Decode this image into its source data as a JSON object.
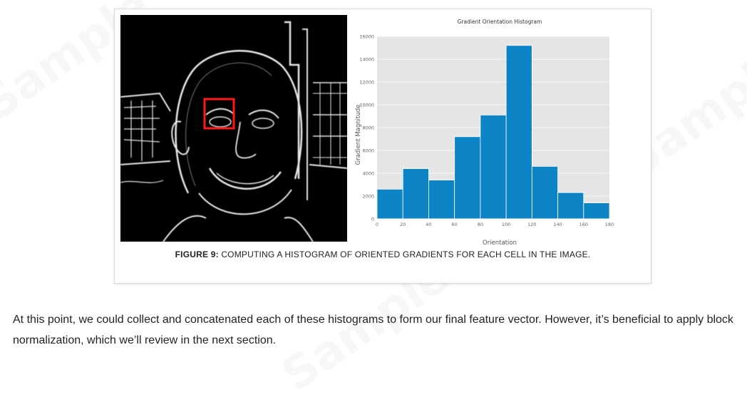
{
  "figure": {
    "caption_label": "FIGURE 9:",
    "caption_text": " COMPUTING A HISTOGRAM OF ORIENTED GRADIENTS FOR EACH CELL IN THE IMAGE."
  },
  "body": {
    "paragraph": "At this point, we could collect and concatenated each of these histograms to form our final feature vector. However, it’s beneficial to apply block normalization, which we’ll review in the next section."
  },
  "chart_data": {
    "type": "bar",
    "title": "Gradient Orientation Histogram",
    "xlabel": "Orientation",
    "ylabel": "Gradient Magnitude",
    "bin_edges": [
      0,
      20,
      40,
      60,
      80,
      100,
      120,
      140,
      160,
      180
    ],
    "values": [
      2600,
      4400,
      3400,
      7200,
      9100,
      15200,
      4600,
      2300,
      1400
    ],
    "xlim": [
      0,
      180
    ],
    "ylim": [
      0,
      16000
    ],
    "xticks": [
      0,
      20,
      40,
      60,
      80,
      100,
      120,
      140,
      160,
      180
    ],
    "yticks": [
      0,
      2000,
      4000,
      6000,
      8000,
      10000,
      12000,
      14000,
      16000
    ],
    "grid": true,
    "colors": {
      "bar": "#0c84c6",
      "plot_bg": "#e5e5e5",
      "edge": "#ffffff"
    }
  },
  "photo": {
    "highlight_color": "#ff1a1a"
  }
}
